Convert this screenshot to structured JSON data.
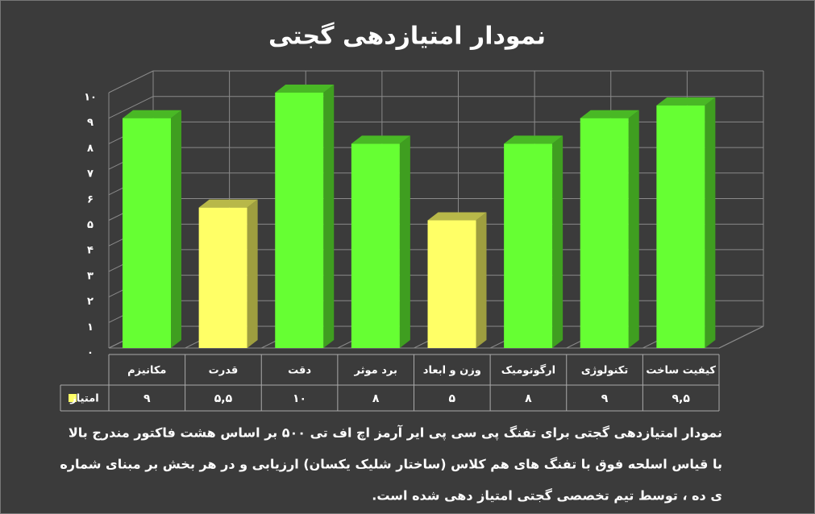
{
  "chart_data": {
    "type": "bar3d",
    "title": "نمودار امتیازدهی گجتی",
    "categories": [
      "مکانیزم",
      "قدرت",
      "دقت",
      "برد موثر",
      "وزن و ابعاد",
      "ارگونومیک",
      "تکنولوژی",
      "کیفیت ساخت"
    ],
    "series": [
      {
        "name": "امتیاز",
        "color": "#ffff66",
        "colors": [
          "#66ff33",
          "#ffff66",
          "#66ff33",
          "#66ff33",
          "#ffff66",
          "#66ff33",
          "#66ff33",
          "#66ff33"
        ],
        "values": [
          9,
          5.5,
          10,
          8,
          5,
          8,
          9,
          9.5
        ],
        "value_labels": [
          "۹",
          "۵,۵",
          "۱۰",
          "۸",
          "۵",
          "۸",
          "۹",
          "۹,۵"
        ]
      }
    ],
    "ylim": [
      0,
      10
    ],
    "yticks": [
      {
        "value": 0,
        "label": "۰"
      },
      {
        "value": 1,
        "label": "۱"
      },
      {
        "value": 2,
        "label": "۲"
      },
      {
        "value": 3,
        "label": "۳"
      },
      {
        "value": 4,
        "label": "۴"
      },
      {
        "value": 5,
        "label": "۵"
      },
      {
        "value": 6,
        "label": "۶"
      },
      {
        "value": 7,
        "label": "۷"
      },
      {
        "value": 8,
        "label": "۸"
      },
      {
        "value": 9,
        "label": "۹"
      },
      {
        "value": 10,
        "label": "۱۰"
      }
    ],
    "grid": true,
    "notes": [
      "نمودار امتیازدهی گجتی برای تفنگ پی سی پی  ایر آرمز اچ اف تی ۵۰۰ بر اساس هشت فاکتور مندرج بالا",
      "با قیاس اسلحه فوق با تفنگ های هم کلاس (ساختار شلیک یکسان) ارزیابی و در هر بخش بر مبنای شماره",
      "ی ده ، توسط تیم تخصصی گجتی امتیاز دهی شده است."
    ]
  }
}
